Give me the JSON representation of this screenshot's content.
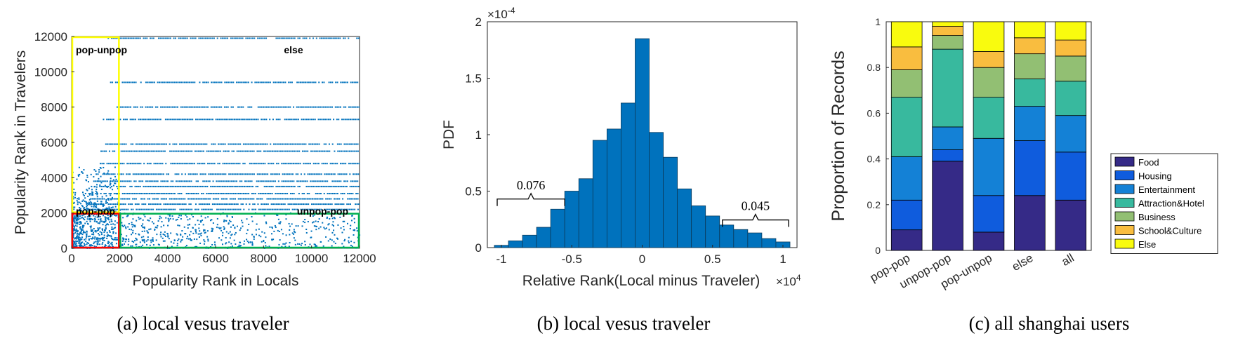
{
  "chart_data": [
    {
      "type": "scatter",
      "xlabel": "Popularity Rank in Locals",
      "ylabel": "Popularity Rank in Travelers",
      "xlim": [
        0,
        12000
      ],
      "ylim": [
        0,
        12000
      ],
      "xticks": [
        "0",
        "2000",
        "4000",
        "6000",
        "8000",
        "10000",
        "12000"
      ],
      "yticks": [
        "0",
        "2000",
        "4000",
        "6000",
        "8000",
        "10000",
        "12000"
      ],
      "series_color": "#0072BD",
      "regions": [
        {
          "label": "pop-unpop",
          "color": "#FFFF00",
          "x": [
            0,
            2000
          ],
          "y": [
            2000,
            12000
          ]
        },
        {
          "label": "pop-pop",
          "color": "#FF0000",
          "x": [
            0,
            2000
          ],
          "y": [
            0,
            2000
          ]
        },
        {
          "label": "unpop-pop",
          "color": "#00B050",
          "x": [
            2000,
            12000
          ],
          "y": [
            0,
            2000
          ]
        },
        {
          "label": "else",
          "color": "",
          "x": [
            2000,
            12000
          ],
          "y": [
            2000,
            12000
          ]
        }
      ],
      "bands": [
        {
          "y": 11900,
          "x_start": 1500
        },
        {
          "y": 9400,
          "x_start": 1600
        },
        {
          "y": 8000,
          "x_start": 1800
        },
        {
          "y": 7300,
          "x_start": 1300
        },
        {
          "y": 5900,
          "x_start": 1400
        },
        {
          "y": 5500,
          "x_start": 1200
        },
        {
          "y": 4800,
          "x_start": 1100
        },
        {
          "y": 4200,
          "x_start": 1000
        },
        {
          "y": 3800,
          "x_start": 900
        },
        {
          "y": 3500,
          "x_start": 800
        },
        {
          "y": 3100,
          "x_start": 700
        },
        {
          "y": 2800,
          "x_start": 700
        },
        {
          "y": 2500,
          "x_start": 600
        },
        {
          "y": 2200,
          "x_start": 500
        }
      ],
      "caption": "(a)  local vesus traveler"
    },
    {
      "type": "bar",
      "xlabel": "Relative Rank(Local minus Traveler)",
      "xlabel_multiplier": "×10",
      "xlabel_exp": "4",
      "ylabel": "PDF",
      "y_multiplier": "×10",
      "y_exp": "-4",
      "xlim": [
        -1.1,
        1.1
      ],
      "ylim": [
        0,
        2
      ],
      "xticks": [
        "-1",
        "-0.5",
        "0",
        "0.5",
        "1"
      ],
      "yticks": [
        "0",
        "0.5",
        "1",
        "1.5",
        "2"
      ],
      "bar_color": "#0072BD",
      "bin_edges": [
        -1.05,
        -0.95,
        -0.85,
        -0.75,
        -0.65,
        -0.55,
        -0.45,
        -0.35,
        -0.25,
        -0.15,
        -0.05,
        0.05,
        0.15,
        0.25,
        0.35,
        0.45,
        0.55,
        0.65,
        0.75,
        0.85,
        0.95,
        1.05
      ],
      "values": [
        0.02,
        0.06,
        0.11,
        0.18,
        0.34,
        0.5,
        0.61,
        0.95,
        1.05,
        1.28,
        1.85,
        1.02,
        0.8,
        0.52,
        0.37,
        0.28,
        0.2,
        0.16,
        0.13,
        0.08,
        0.05,
        0.03
      ],
      "annotations": [
        {
          "text": "0.076",
          "x_from": -1.03,
          "x_to": -0.55
        },
        {
          "text": "0.045",
          "x_from": 0.57,
          "x_to": 1.04
        }
      ],
      "caption": "(b)  local vesus traveler"
    },
    {
      "type": "bar",
      "stacked": true,
      "ylabel": "Proportion of Records",
      "ylim": [
        0,
        1
      ],
      "yticks": [
        "0",
        "0.2",
        "0.4",
        "0.6",
        "0.8",
        "1"
      ],
      "categories": [
        "pop-pop",
        "unpop-pop",
        "pop-unpop",
        "else",
        "all"
      ],
      "series": [
        {
          "name": "Food",
          "color": "#352A87",
          "values": [
            0.09,
            0.39,
            0.08,
            0.24,
            0.22
          ]
        },
        {
          "name": "Housing",
          "color": "#0F5CDD",
          "values": [
            0.13,
            0.05,
            0.16,
            0.24,
            0.21
          ]
        },
        {
          "name": "Entertainment",
          "color": "#1481D6",
          "values": [
            0.19,
            0.1,
            0.25,
            0.15,
            0.16
          ]
        },
        {
          "name": "Attraction&Hotel",
          "color": "#38B99E",
          "values": [
            0.26,
            0.34,
            0.18,
            0.12,
            0.15
          ]
        },
        {
          "name": "Business",
          "color": "#92BF73",
          "values": [
            0.12,
            0.06,
            0.13,
            0.11,
            0.11
          ]
        },
        {
          "name": "School&Culture",
          "color": "#F9BD3F",
          "values": [
            0.1,
            0.04,
            0.07,
            0.07,
            0.07
          ]
        },
        {
          "name": "Else",
          "color": "#F9FB0E",
          "values": [
            0.11,
            0.02,
            0.13,
            0.07,
            0.08
          ]
        }
      ],
      "legend_position": "right",
      "caption": "(c)  all shanghai users"
    }
  ]
}
